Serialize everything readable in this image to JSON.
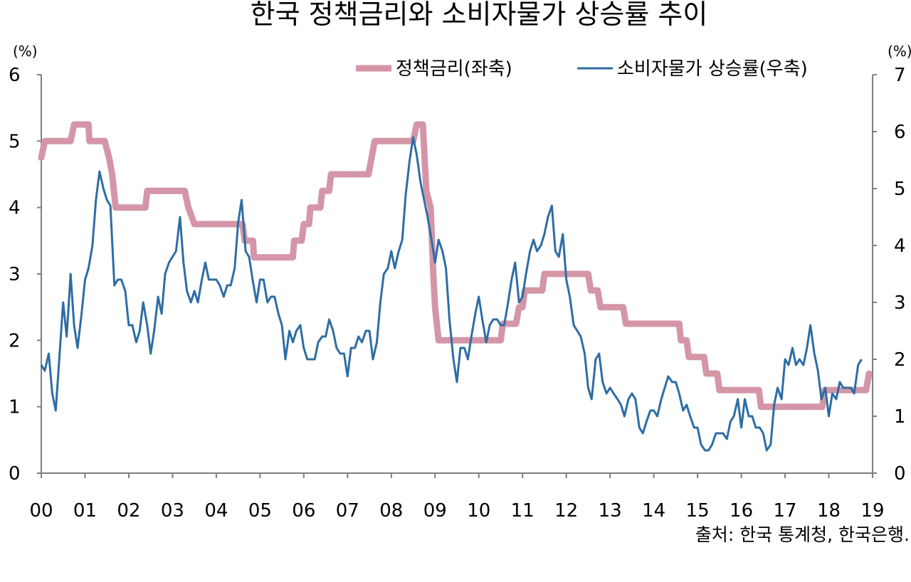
{
  "chart_data": {
    "type": "line",
    "title": "한국 정책금리와 소비자물가 상승률 추이",
    "source": "출처: 한국 통계청, 한국은행.",
    "left_axis": {
      "unit": "(%)",
      "range": [
        0,
        6
      ],
      "ticks": [
        "0",
        "1",
        "2",
        "3",
        "4",
        "5",
        "6"
      ]
    },
    "right_axis": {
      "unit": "(%)",
      "range": [
        0,
        7
      ],
      "ticks": [
        "0",
        "1",
        "2",
        "3",
        "4",
        "5",
        "6",
        "7"
      ]
    },
    "x_axis": {
      "range": [
        2000,
        2019
      ],
      "tick_labels": [
        "00",
        "01",
        "02",
        "03",
        "04",
        "05",
        "06",
        "07",
        "08",
        "09",
        "10",
        "11",
        "12",
        "13",
        "14",
        "15",
        "16",
        "17",
        "18",
        "19"
      ]
    },
    "legend_position": "top-right",
    "grid": false,
    "colors": {
      "policy_rate": "#d496a7",
      "cpi": "#2e6da4",
      "axis": "#7f7f7f"
    },
    "series": [
      {
        "name": "정책금리(좌축)",
        "axis": "left",
        "style": "step",
        "points": [
          [
            2000.0,
            4.75
          ],
          [
            2000.08,
            5.0
          ],
          [
            2000.67,
            5.0
          ],
          [
            2000.75,
            5.25
          ],
          [
            2001.08,
            5.25
          ],
          [
            2001.1,
            5.0
          ],
          [
            2001.45,
            5.0
          ],
          [
            2001.55,
            4.75
          ],
          [
            2001.62,
            4.5
          ],
          [
            2001.7,
            4.0
          ],
          [
            2002.38,
            4.0
          ],
          [
            2002.42,
            4.25
          ],
          [
            2003.28,
            4.25
          ],
          [
            2003.36,
            4.0
          ],
          [
            2003.5,
            3.75
          ],
          [
            2004.6,
            3.75
          ],
          [
            2004.65,
            3.5
          ],
          [
            2004.84,
            3.5
          ],
          [
            2004.86,
            3.25
          ],
          [
            2005.75,
            3.25
          ],
          [
            2005.78,
            3.5
          ],
          [
            2005.95,
            3.5
          ],
          [
            2006.0,
            3.75
          ],
          [
            2006.12,
            3.75
          ],
          [
            2006.15,
            4.0
          ],
          [
            2006.38,
            4.0
          ],
          [
            2006.42,
            4.25
          ],
          [
            2006.58,
            4.25
          ],
          [
            2006.62,
            4.5
          ],
          [
            2007.48,
            4.5
          ],
          [
            2007.55,
            4.75
          ],
          [
            2007.62,
            5.0
          ],
          [
            2008.5,
            5.0
          ],
          [
            2008.58,
            5.25
          ],
          [
            2008.72,
            5.25
          ],
          [
            2008.8,
            4.25
          ],
          [
            2008.9,
            4.0
          ],
          [
            2008.96,
            3.0
          ],
          [
            2009.0,
            2.5
          ],
          [
            2009.08,
            2.0
          ],
          [
            2010.5,
            2.0
          ],
          [
            2010.55,
            2.25
          ],
          [
            2010.85,
            2.25
          ],
          [
            2010.92,
            2.5
          ],
          [
            2011.0,
            2.5
          ],
          [
            2011.05,
            2.75
          ],
          [
            2011.45,
            2.75
          ],
          [
            2011.5,
            3.0
          ],
          [
            2012.5,
            3.0
          ],
          [
            2012.56,
            2.75
          ],
          [
            2012.72,
            2.75
          ],
          [
            2012.78,
            2.5
          ],
          [
            2013.3,
            2.5
          ],
          [
            2013.36,
            2.25
          ],
          [
            2014.58,
            2.25
          ],
          [
            2014.62,
            2.0
          ],
          [
            2014.75,
            2.0
          ],
          [
            2014.8,
            1.75
          ],
          [
            2015.15,
            1.75
          ],
          [
            2015.2,
            1.5
          ],
          [
            2015.45,
            1.5
          ],
          [
            2015.5,
            1.25
          ],
          [
            2016.4,
            1.25
          ],
          [
            2016.45,
            1.0
          ],
          [
            2017.85,
            1.0
          ],
          [
            2017.9,
            1.25
          ],
          [
            2018.85,
            1.25
          ],
          [
            2018.92,
            1.5
          ]
        ]
      },
      {
        "name": "소비자물가 상승률(우축)",
        "axis": "right",
        "style": "line",
        "points": [
          [
            2000.0,
            1.9
          ],
          [
            2000.08,
            1.8
          ],
          [
            2000.17,
            2.1
          ],
          [
            2000.25,
            1.4
          ],
          [
            2000.33,
            1.1
          ],
          [
            2000.42,
            2.1
          ],
          [
            2000.5,
            3.0
          ],
          [
            2000.58,
            2.4
          ],
          [
            2000.67,
            3.5
          ],
          [
            2000.75,
            2.6
          ],
          [
            2000.83,
            2.2
          ],
          [
            2000.92,
            2.8
          ],
          [
            2001.0,
            3.4
          ],
          [
            2001.08,
            3.6
          ],
          [
            2001.17,
            4.0
          ],
          [
            2001.25,
            4.8
          ],
          [
            2001.33,
            5.3
          ],
          [
            2001.42,
            5.0
          ],
          [
            2001.5,
            4.8
          ],
          [
            2001.58,
            4.7
          ],
          [
            2001.67,
            3.3
          ],
          [
            2001.75,
            3.4
          ],
          [
            2001.83,
            3.4
          ],
          [
            2001.92,
            3.2
          ],
          [
            2002.0,
            2.6
          ],
          [
            2002.08,
            2.6
          ],
          [
            2002.17,
            2.3
          ],
          [
            2002.25,
            2.5
          ],
          [
            2002.33,
            3.0
          ],
          [
            2002.42,
            2.6
          ],
          [
            2002.5,
            2.1
          ],
          [
            2002.58,
            2.5
          ],
          [
            2002.67,
            3.1
          ],
          [
            2002.75,
            2.8
          ],
          [
            2002.83,
            3.5
          ],
          [
            2002.92,
            3.7
          ],
          [
            2003.0,
            3.8
          ],
          [
            2003.08,
            3.9
          ],
          [
            2003.17,
            4.5
          ],
          [
            2003.25,
            3.7
          ],
          [
            2003.33,
            3.2
          ],
          [
            2003.42,
            3.0
          ],
          [
            2003.5,
            3.2
          ],
          [
            2003.58,
            3.0
          ],
          [
            2003.67,
            3.4
          ],
          [
            2003.75,
            3.7
          ],
          [
            2003.83,
            3.4
          ],
          [
            2003.92,
            3.4
          ],
          [
            2004.0,
            3.4
          ],
          [
            2004.08,
            3.3
          ],
          [
            2004.17,
            3.1
          ],
          [
            2004.25,
            3.3
          ],
          [
            2004.33,
            3.3
          ],
          [
            2004.42,
            3.6
          ],
          [
            2004.5,
            4.4
          ],
          [
            2004.58,
            4.8
          ],
          [
            2004.67,
            3.9
          ],
          [
            2004.75,
            3.8
          ],
          [
            2004.83,
            3.4
          ],
          [
            2004.92,
            3.0
          ],
          [
            2005.0,
            3.4
          ],
          [
            2005.08,
            3.4
          ],
          [
            2005.17,
            3.0
          ],
          [
            2005.25,
            3.1
          ],
          [
            2005.33,
            3.1
          ],
          [
            2005.42,
            2.8
          ],
          [
            2005.5,
            2.6
          ],
          [
            2005.58,
            2.0
          ],
          [
            2005.67,
            2.5
          ],
          [
            2005.75,
            2.3
          ],
          [
            2005.83,
            2.5
          ],
          [
            2005.92,
            2.6
          ],
          [
            2006.0,
            2.2
          ],
          [
            2006.08,
            2.0
          ],
          [
            2006.17,
            2.0
          ],
          [
            2006.25,
            2.0
          ],
          [
            2006.33,
            2.3
          ],
          [
            2006.42,
            2.4
          ],
          [
            2006.5,
            2.4
          ],
          [
            2006.58,
            2.7
          ],
          [
            2006.67,
            2.5
          ],
          [
            2006.75,
            2.2
          ],
          [
            2006.83,
            2.1
          ],
          [
            2006.92,
            2.1
          ],
          [
            2007.0,
            1.7
          ],
          [
            2007.08,
            2.2
          ],
          [
            2007.17,
            2.2
          ],
          [
            2007.25,
            2.4
          ],
          [
            2007.33,
            2.3
          ],
          [
            2007.42,
            2.5
          ],
          [
            2007.5,
            2.5
          ],
          [
            2007.58,
            2.0
          ],
          [
            2007.67,
            2.3
          ],
          [
            2007.75,
            3.0
          ],
          [
            2007.83,
            3.5
          ],
          [
            2007.92,
            3.6
          ],
          [
            2008.0,
            3.9
          ],
          [
            2008.08,
            3.6
          ],
          [
            2008.17,
            3.9
          ],
          [
            2008.25,
            4.1
          ],
          [
            2008.33,
            4.9
          ],
          [
            2008.42,
            5.5
          ],
          [
            2008.5,
            5.9
          ],
          [
            2008.58,
            5.6
          ],
          [
            2008.67,
            5.1
          ],
          [
            2008.75,
            4.8
          ],
          [
            2008.83,
            4.5
          ],
          [
            2008.92,
            4.1
          ],
          [
            2009.0,
            3.7
          ],
          [
            2009.08,
            4.1
          ],
          [
            2009.17,
            3.9
          ],
          [
            2009.25,
            3.6
          ],
          [
            2009.33,
            2.7
          ],
          [
            2009.42,
            2.0
          ],
          [
            2009.5,
            1.6
          ],
          [
            2009.58,
            2.2
          ],
          [
            2009.67,
            2.2
          ],
          [
            2009.75,
            2.0
          ],
          [
            2009.83,
            2.4
          ],
          [
            2009.92,
            2.8
          ],
          [
            2010.0,
            3.1
          ],
          [
            2010.08,
            2.7
          ],
          [
            2010.17,
            2.3
          ],
          [
            2010.25,
            2.6
          ],
          [
            2010.33,
            2.7
          ],
          [
            2010.42,
            2.7
          ],
          [
            2010.5,
            2.6
          ],
          [
            2010.58,
            2.6
          ],
          [
            2010.67,
            3.0
          ],
          [
            2010.75,
            3.4
          ],
          [
            2010.83,
            3.7
          ],
          [
            2010.92,
            3.0
          ],
          [
            2011.0,
            3.1
          ],
          [
            2011.08,
            3.5
          ],
          [
            2011.17,
            3.9
          ],
          [
            2011.25,
            4.1
          ],
          [
            2011.33,
            3.9
          ],
          [
            2011.42,
            4.0
          ],
          [
            2011.5,
            4.2
          ],
          [
            2011.58,
            4.5
          ],
          [
            2011.67,
            4.7
          ],
          [
            2011.75,
            3.9
          ],
          [
            2011.83,
            3.8
          ],
          [
            2011.92,
            4.2
          ],
          [
            2012.0,
            3.4
          ],
          [
            2012.08,
            3.1
          ],
          [
            2012.17,
            2.6
          ],
          [
            2012.25,
            2.5
          ],
          [
            2012.33,
            2.4
          ],
          [
            2012.42,
            2.1
          ],
          [
            2012.5,
            1.5
          ],
          [
            2012.58,
            1.3
          ],
          [
            2012.67,
            2.0
          ],
          [
            2012.75,
            2.1
          ],
          [
            2012.83,
            1.6
          ],
          [
            2012.92,
            1.4
          ],
          [
            2013.0,
            1.5
          ],
          [
            2013.08,
            1.4
          ],
          [
            2013.17,
            1.3
          ],
          [
            2013.25,
            1.2
          ],
          [
            2013.33,
            1.0
          ],
          [
            2013.42,
            1.3
          ],
          [
            2013.5,
            1.4
          ],
          [
            2013.58,
            1.3
          ],
          [
            2013.67,
            0.8
          ],
          [
            2013.75,
            0.7
          ],
          [
            2013.83,
            0.9
          ],
          [
            2013.92,
            1.1
          ],
          [
            2014.0,
            1.1
          ],
          [
            2014.08,
            1.0
          ],
          [
            2014.17,
            1.3
          ],
          [
            2014.25,
            1.5
          ],
          [
            2014.33,
            1.7
          ],
          [
            2014.42,
            1.6
          ],
          [
            2014.5,
            1.6
          ],
          [
            2014.58,
            1.4
          ],
          [
            2014.67,
            1.1
          ],
          [
            2014.75,
            1.2
          ],
          [
            2014.83,
            1.0
          ],
          [
            2014.92,
            0.8
          ],
          [
            2015.0,
            0.8
          ],
          [
            2015.08,
            0.5
          ],
          [
            2015.17,
            0.4
          ],
          [
            2015.25,
            0.4
          ],
          [
            2015.33,
            0.5
          ],
          [
            2015.42,
            0.7
          ],
          [
            2015.5,
            0.7
          ],
          [
            2015.58,
            0.7
          ],
          [
            2015.67,
            0.6
          ],
          [
            2015.75,
            0.9
          ],
          [
            2015.83,
            1.0
          ],
          [
            2015.92,
            1.3
          ],
          [
            2016.0,
            0.8
          ],
          [
            2016.08,
            1.3
          ],
          [
            2016.17,
            1.0
          ],
          [
            2016.25,
            1.0
          ],
          [
            2016.33,
            0.8
          ],
          [
            2016.42,
            0.8
          ],
          [
            2016.5,
            0.7
          ],
          [
            2016.58,
            0.4
          ],
          [
            2016.67,
            0.5
          ],
          [
            2016.75,
            1.2
          ],
          [
            2016.83,
            1.5
          ],
          [
            2016.92,
            1.3
          ],
          [
            2017.0,
            2.0
          ],
          [
            2017.08,
            1.9
          ],
          [
            2017.17,
            2.2
          ],
          [
            2017.25,
            1.9
          ],
          [
            2017.33,
            2.0
          ],
          [
            2017.42,
            1.9
          ],
          [
            2017.5,
            2.2
          ],
          [
            2017.58,
            2.6
          ],
          [
            2017.67,
            2.1
          ],
          [
            2017.75,
            1.8
          ],
          [
            2017.83,
            1.3
          ],
          [
            2017.92,
            1.5
          ],
          [
            2018.0,
            1.0
          ],
          [
            2018.08,
            1.4
          ],
          [
            2018.17,
            1.3
          ],
          [
            2018.25,
            1.6
          ],
          [
            2018.33,
            1.5
          ],
          [
            2018.42,
            1.5
          ],
          [
            2018.5,
            1.5
          ],
          [
            2018.58,
            1.4
          ],
          [
            2018.67,
            1.9
          ],
          [
            2018.75,
            2.0
          ]
        ]
      }
    ]
  }
}
